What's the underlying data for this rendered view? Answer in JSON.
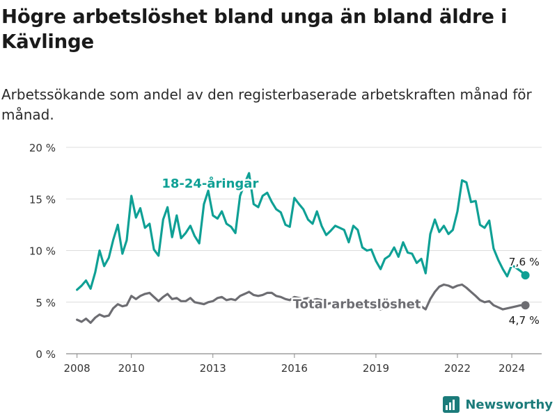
{
  "title": "Högre arbetslöshet bland unga än bland äldre i Kävlinge",
  "subtitle": "Arbetssökande som andel av den registerbaserade arbetskraften månad för månad.",
  "brand": {
    "name": "Newsworthy",
    "icon": "bar-chart-logo-icon",
    "color": "#1b7b7a"
  },
  "chart_data": {
    "type": "line",
    "title": "Högre arbetslöshet bland unga än bland äldre i Kävlinge",
    "xlabel": "",
    "ylabel": "",
    "xlim": [
      2007.6,
      2025.1
    ],
    "ylim": [
      0,
      20
    ],
    "x_ticks": [
      2008,
      2010,
      2013,
      2016,
      2019,
      2022,
      2024
    ],
    "x_tick_labels": [
      "2008",
      "2010",
      "2013",
      "2016",
      "2019",
      "2022",
      "2024"
    ],
    "y_ticks": [
      0,
      5,
      10,
      15,
      20
    ],
    "y_tick_labels": [
      "0 %",
      "5 %",
      "10 %",
      "15 %",
      "20 %"
    ],
    "grid": true,
    "series": [
      {
        "name": "18-24-åringar",
        "color": "#0fa095",
        "end_label": "7,6 %",
        "points": [
          [
            2008.0,
            6.2
          ],
          [
            2008.17,
            6.6
          ],
          [
            2008.33,
            7.1
          ],
          [
            2008.5,
            6.3
          ],
          [
            2008.67,
            7.9
          ],
          [
            2008.83,
            10.0
          ],
          [
            2009.0,
            8.5
          ],
          [
            2009.17,
            9.3
          ],
          [
            2009.33,
            11.0
          ],
          [
            2009.5,
            12.5
          ],
          [
            2009.67,
            9.7
          ],
          [
            2009.83,
            11.0
          ],
          [
            2010.0,
            15.3
          ],
          [
            2010.17,
            13.2
          ],
          [
            2010.33,
            14.1
          ],
          [
            2010.5,
            12.2
          ],
          [
            2010.67,
            12.6
          ],
          [
            2010.83,
            10.1
          ],
          [
            2011.0,
            9.5
          ],
          [
            2011.17,
            13.0
          ],
          [
            2011.33,
            14.2
          ],
          [
            2011.5,
            11.3
          ],
          [
            2011.67,
            13.4
          ],
          [
            2011.83,
            11.2
          ],
          [
            2012.0,
            11.7
          ],
          [
            2012.17,
            12.4
          ],
          [
            2012.33,
            11.4
          ],
          [
            2012.5,
            10.7
          ],
          [
            2012.67,
            14.5
          ],
          [
            2012.83,
            15.8
          ],
          [
            2013.0,
            13.4
          ],
          [
            2013.17,
            13.1
          ],
          [
            2013.33,
            13.8
          ],
          [
            2013.5,
            12.6
          ],
          [
            2013.67,
            12.3
          ],
          [
            2013.83,
            11.7
          ],
          [
            2014.0,
            15.3
          ],
          [
            2014.17,
            16.5
          ],
          [
            2014.33,
            17.5
          ],
          [
            2014.5,
            14.5
          ],
          [
            2014.67,
            14.2
          ],
          [
            2014.83,
            15.3
          ],
          [
            2015.0,
            15.6
          ],
          [
            2015.17,
            14.7
          ],
          [
            2015.33,
            14.0
          ],
          [
            2015.5,
            13.7
          ],
          [
            2015.67,
            12.5
          ],
          [
            2015.83,
            12.3
          ],
          [
            2016.0,
            15.1
          ],
          [
            2016.17,
            14.5
          ],
          [
            2016.33,
            14.0
          ],
          [
            2016.5,
            13.0
          ],
          [
            2016.67,
            12.6
          ],
          [
            2016.83,
            13.8
          ],
          [
            2017.0,
            12.4
          ],
          [
            2017.17,
            11.5
          ],
          [
            2017.33,
            11.9
          ],
          [
            2017.5,
            12.4
          ],
          [
            2017.67,
            12.2
          ],
          [
            2017.83,
            12.0
          ],
          [
            2018.0,
            10.8
          ],
          [
            2018.17,
            12.4
          ],
          [
            2018.33,
            12.0
          ],
          [
            2018.5,
            10.3
          ],
          [
            2018.67,
            10.0
          ],
          [
            2018.83,
            10.1
          ],
          [
            2019.0,
            9.0
          ],
          [
            2019.17,
            8.2
          ],
          [
            2019.33,
            9.2
          ],
          [
            2019.5,
            9.5
          ],
          [
            2019.67,
            10.3
          ],
          [
            2019.83,
            9.4
          ],
          [
            2020.0,
            10.8
          ],
          [
            2020.17,
            9.8
          ],
          [
            2020.33,
            9.7
          ],
          [
            2020.5,
            8.8
          ],
          [
            2020.67,
            9.2
          ],
          [
            2020.83,
            7.8
          ],
          [
            2021.0,
            11.6
          ],
          [
            2021.17,
            13.0
          ],
          [
            2021.33,
            11.8
          ],
          [
            2021.5,
            12.4
          ],
          [
            2021.67,
            11.6
          ],
          [
            2021.83,
            12.0
          ],
          [
            2022.0,
            13.8
          ],
          [
            2022.17,
            16.8
          ],
          [
            2022.33,
            16.6
          ],
          [
            2022.5,
            14.7
          ],
          [
            2022.67,
            14.8
          ],
          [
            2022.83,
            12.5
          ],
          [
            2023.0,
            12.2
          ],
          [
            2023.17,
            12.9
          ],
          [
            2023.33,
            10.2
          ],
          [
            2023.5,
            9.1
          ],
          [
            2023.67,
            8.2
          ],
          [
            2023.83,
            7.5
          ],
          [
            2024.0,
            8.6
          ],
          [
            2024.17,
            8.3
          ],
          [
            2024.33,
            8.0
          ],
          [
            2024.5,
            7.6
          ]
        ]
      },
      {
        "name": "Total arbetslöshet",
        "color": "#6d6d72",
        "end_label": "4,7 %",
        "points": [
          [
            2008.0,
            3.3
          ],
          [
            2008.17,
            3.1
          ],
          [
            2008.33,
            3.4
          ],
          [
            2008.5,
            3.0
          ],
          [
            2008.67,
            3.5
          ],
          [
            2008.83,
            3.8
          ],
          [
            2009.0,
            3.6
          ],
          [
            2009.17,
            3.7
          ],
          [
            2009.33,
            4.4
          ],
          [
            2009.5,
            4.8
          ],
          [
            2009.67,
            4.6
          ],
          [
            2009.83,
            4.7
          ],
          [
            2010.0,
            5.6
          ],
          [
            2010.17,
            5.3
          ],
          [
            2010.33,
            5.6
          ],
          [
            2010.5,
            5.8
          ],
          [
            2010.67,
            5.9
          ],
          [
            2010.83,
            5.5
          ],
          [
            2011.0,
            5.1
          ],
          [
            2011.17,
            5.5
          ],
          [
            2011.33,
            5.8
          ],
          [
            2011.5,
            5.3
          ],
          [
            2011.67,
            5.4
          ],
          [
            2011.83,
            5.1
          ],
          [
            2012.0,
            5.1
          ],
          [
            2012.17,
            5.4
          ],
          [
            2012.33,
            5.0
          ],
          [
            2012.5,
            4.9
          ],
          [
            2012.67,
            4.8
          ],
          [
            2012.83,
            5.0
          ],
          [
            2013.0,
            5.1
          ],
          [
            2013.17,
            5.4
          ],
          [
            2013.33,
            5.5
          ],
          [
            2013.5,
            5.2
          ],
          [
            2013.67,
            5.3
          ],
          [
            2013.83,
            5.2
          ],
          [
            2014.0,
            5.6
          ],
          [
            2014.17,
            5.8
          ],
          [
            2014.33,
            6.0
          ],
          [
            2014.5,
            5.7
          ],
          [
            2014.67,
            5.6
          ],
          [
            2014.83,
            5.7
          ],
          [
            2015.0,
            5.9
          ],
          [
            2015.17,
            5.9
          ],
          [
            2015.33,
            5.6
          ],
          [
            2015.5,
            5.5
          ],
          [
            2015.67,
            5.3
          ],
          [
            2015.83,
            5.2
          ],
          [
            2016.0,
            5.5
          ],
          [
            2016.17,
            5.4
          ],
          [
            2016.33,
            5.3
          ],
          [
            2016.5,
            5.4
          ],
          [
            2016.67,
            5.2
          ],
          [
            2016.83,
            5.3
          ],
          [
            2017.0,
            5.2
          ],
          [
            2017.17,
            4.8
          ],
          [
            2017.33,
            4.9
          ],
          [
            2017.5,
            5.0
          ],
          [
            2017.67,
            4.8
          ],
          [
            2017.83,
            4.9
          ],
          [
            2018.0,
            4.6
          ],
          [
            2018.17,
            4.8
          ],
          [
            2018.33,
            4.7
          ],
          [
            2018.5,
            4.6
          ],
          [
            2018.67,
            4.5
          ],
          [
            2018.83,
            4.6
          ],
          [
            2019.0,
            4.5
          ],
          [
            2019.17,
            4.3
          ],
          [
            2019.33,
            4.5
          ],
          [
            2019.5,
            4.6
          ],
          [
            2019.67,
            4.7
          ],
          [
            2019.83,
            4.6
          ],
          [
            2020.0,
            4.9
          ],
          [
            2020.17,
            4.7
          ],
          [
            2020.33,
            4.6
          ],
          [
            2020.5,
            4.5
          ],
          [
            2020.67,
            4.6
          ],
          [
            2020.83,
            4.3
          ],
          [
            2021.0,
            5.3
          ],
          [
            2021.17,
            6.0
          ],
          [
            2021.33,
            6.5
          ],
          [
            2021.5,
            6.7
          ],
          [
            2021.67,
            6.6
          ],
          [
            2021.83,
            6.4
          ],
          [
            2022.0,
            6.6
          ],
          [
            2022.17,
            6.7
          ],
          [
            2022.33,
            6.4
          ],
          [
            2022.5,
            6.0
          ],
          [
            2022.67,
            5.6
          ],
          [
            2022.83,
            5.2
          ],
          [
            2023.0,
            5.0
          ],
          [
            2023.17,
            5.1
          ],
          [
            2023.33,
            4.7
          ],
          [
            2023.5,
            4.5
          ],
          [
            2023.67,
            4.3
          ],
          [
            2023.83,
            4.4
          ],
          [
            2024.0,
            4.5
          ],
          [
            2024.17,
            4.6
          ],
          [
            2024.33,
            4.7
          ],
          [
            2024.5,
            4.7
          ]
        ]
      }
    ],
    "annotations": [
      {
        "text": "18-24-åringar",
        "series": "18-24-åringar",
        "near_x": 2012.9,
        "near_y": 16.1
      },
      {
        "text": "Total arbetslöshet",
        "series": "Total arbetslöshet",
        "near_x": 2018.3,
        "near_y": 4.4
      }
    ]
  }
}
